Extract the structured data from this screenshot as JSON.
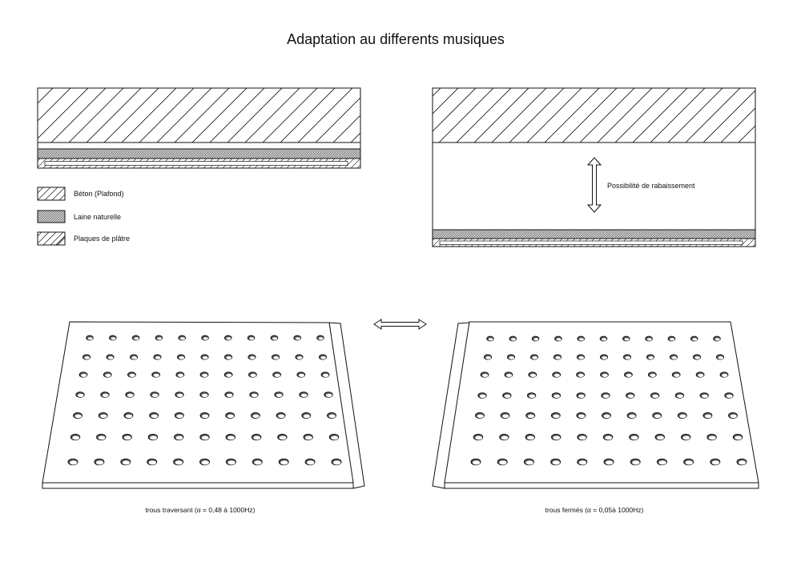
{
  "title": "Adaptation au differents musiques",
  "legend": [
    {
      "label": "Béton (Plafond)"
    },
    {
      "label": "Laine naturelle"
    },
    {
      "label": "Plaques de plâtre"
    }
  ],
  "annotation": "Possibilité de rabaissement",
  "panels": {
    "left_caption": "trous traversant (α = 0,48 à 1000Hz)",
    "right_caption": "trous fermés (α = 0,05à 1000Hz)"
  }
}
